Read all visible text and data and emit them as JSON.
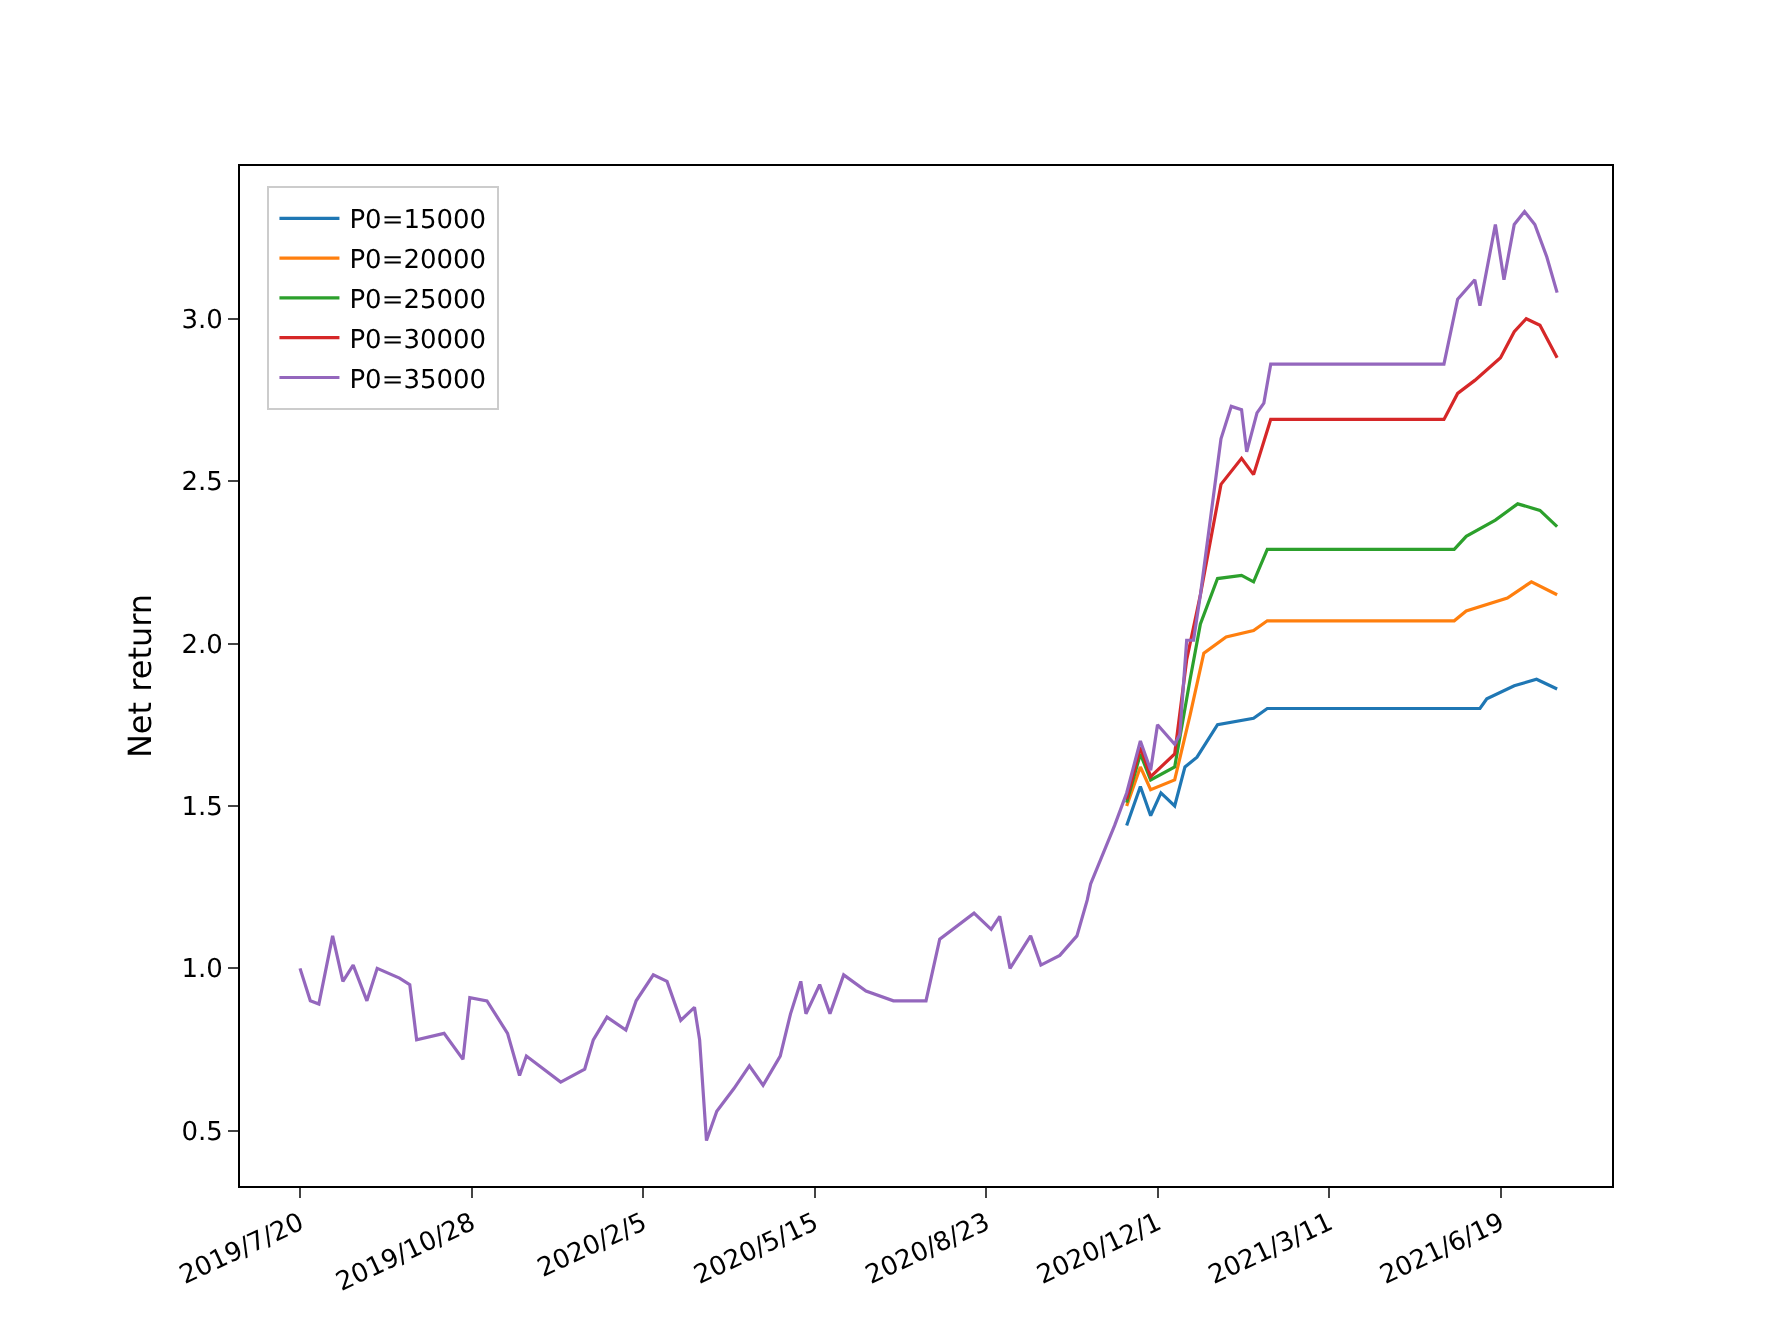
{
  "chart_data": {
    "type": "line",
    "ylabel": "Net return",
    "legend": "top left",
    "grid": false,
    "line_style": "solid",
    "marker": "none",
    "xlim": [
      "2019-06-15",
      "2021-08-23"
    ],
    "xticks": [
      {
        "value": "2019-07-20",
        "label": "2019/7/20"
      },
      {
        "value": "2019-10-28",
        "label": "2019/10/28"
      },
      {
        "value": "2020-02-05",
        "label": "2020/2/5"
      },
      {
        "value": "2020-05-15",
        "label": "2020/5/15"
      },
      {
        "value": "2020-08-23",
        "label": "2020/8/23"
      },
      {
        "value": "2020-12-01",
        "label": "2020/12/1"
      },
      {
        "value": "2021-03-11",
        "label": "2021/3/11"
      },
      {
        "value": "2021-06-19",
        "label": "2021/6/19"
      }
    ],
    "ylim": [
      0.33,
      3.47
    ],
    "yticks": [
      0.5,
      {
        "value": 1,
        "label": "1.0"
      },
      1.5,
      {
        "value": 2,
        "label": "2.0"
      },
      2.5,
      {
        "value": 3,
        "label": "3.0"
      }
    ],
    "series": [
      {
        "name": "P0=15000",
        "color": "#1f77b4",
        "x": [
          "2020-11-13",
          "2020-11-21",
          "2020-11-27",
          "2020-12-03",
          "2020-12-11",
          "2020-12-17",
          "2020-12-24",
          "2021-01-05",
          "2021-01-26",
          "2021-02-03",
          "2021-06-07",
          "2021-06-11",
          "2021-06-27",
          "2021-07-10",
          "2021-07-22"
        ],
        "values": [
          1.44,
          1.56,
          1.47,
          1.54,
          1.5,
          1.62,
          1.65,
          1.75,
          1.77,
          1.8,
          1.8,
          1.83,
          1.87,
          1.89,
          1.86
        ]
      },
      {
        "name": "P0=20000",
        "color": "#ff7f0e",
        "x": [
          "2020-11-13",
          "2020-11-21",
          "2020-11-27",
          "2020-12-11",
          "2020-12-20",
          "2020-12-28",
          "2021-01-10",
          "2021-01-26",
          "2021-02-03",
          "2021-05-23",
          "2021-05-30",
          "2021-06-23",
          "2021-07-07",
          "2021-07-22"
        ],
        "values": [
          1.5,
          1.62,
          1.55,
          1.58,
          1.78,
          1.97,
          2.02,
          2.04,
          2.07,
          2.07,
          2.1,
          2.14,
          2.19,
          2.15
        ]
      },
      {
        "name": "P0=25000",
        "color": "#2ca02c",
        "x": [
          "2020-11-13",
          "2020-11-21",
          "2020-11-27",
          "2020-12-11",
          "2020-12-20",
          "2020-12-26",
          "2021-01-05",
          "2021-01-19",
          "2021-01-26",
          "2021-02-03",
          "2021-05-23",
          "2021-05-30",
          "2021-06-16",
          "2021-06-29",
          "2021-07-12",
          "2021-07-22"
        ],
        "values": [
          1.51,
          1.66,
          1.58,
          1.62,
          1.89,
          2.06,
          2.2,
          2.21,
          2.19,
          2.29,
          2.29,
          2.33,
          2.38,
          2.43,
          2.41,
          2.36
        ]
      },
      {
        "name": "P0=30000",
        "color": "#d62728",
        "x": [
          "2020-11-13",
          "2020-11-21",
          "2020-11-27",
          "2020-12-11",
          "2020-12-18",
          "2020-12-26",
          "2021-01-07",
          "2021-01-19",
          "2021-01-26",
          "2021-02-05",
          "2021-05-17",
          "2021-05-25",
          "2021-06-04",
          "2021-06-19",
          "2021-06-27",
          "2021-07-04",
          "2021-07-12",
          "2021-07-22"
        ],
        "values": [
          1.52,
          1.68,
          1.59,
          1.66,
          1.95,
          2.15,
          2.49,
          2.57,
          2.52,
          2.69,
          2.69,
          2.77,
          2.81,
          2.88,
          2.96,
          3.0,
          2.98,
          2.88
        ]
      },
      {
        "name": "P0=35000",
        "color": "#9467bd",
        "x": [
          "2019-07-20",
          "2019-07-26",
          "2019-07-31",
          "2019-08-08",
          "2019-08-14",
          "2019-08-20",
          "2019-08-28",
          "2019-09-03",
          "2019-09-16",
          "2019-09-22",
          "2019-09-26",
          "2019-10-12",
          "2019-10-23",
          "2019-10-27",
          "2019-11-06",
          "2019-11-18",
          "2019-11-25",
          "2019-11-29",
          "2019-12-19",
          "2020-01-02",
          "2020-01-07",
          "2020-01-15",
          "2020-01-26",
          "2020-02-01",
          "2020-02-11",
          "2020-02-19",
          "2020-02-27",
          "2020-03-06",
          "2020-03-09",
          "2020-03-13",
          "2020-03-19",
          "2020-03-29",
          "2020-04-07",
          "2020-04-15",
          "2020-04-25",
          "2020-05-01",
          "2020-05-07",
          "2020-05-10",
          "2020-05-18",
          "2020-05-24",
          "2020-06-01",
          "2020-06-14",
          "2020-06-30",
          "2020-07-19",
          "2020-07-27",
          "2020-08-16",
          "2020-08-26",
          "2020-08-31",
          "2020-09-06",
          "2020-09-18",
          "2020-09-24",
          "2020-10-05",
          "2020-10-15",
          "2020-10-21",
          "2020-10-23",
          "2020-11-06",
          "2020-11-13",
          "2020-11-21",
          "2020-11-27",
          "2020-12-01",
          "2020-12-11",
          "2020-12-14",
          "2020-12-18",
          "2020-12-22",
          "2020-12-26",
          "2021-01-07",
          "2021-01-13",
          "2021-01-19",
          "2021-01-22",
          "2021-01-28",
          "2021-02-01",
          "2021-02-05",
          "2021-05-17",
          "2021-05-25",
          "2021-06-04",
          "2021-06-07",
          "2021-06-16",
          "2021-06-21",
          "2021-06-27",
          "2021-07-03",
          "2021-07-09",
          "2021-07-16",
          "2021-07-22"
        ],
        "values": [
          1.0,
          0.9,
          0.89,
          1.1,
          0.96,
          1.01,
          0.9,
          1.0,
          0.97,
          0.95,
          0.78,
          0.8,
          0.72,
          0.91,
          0.9,
          0.8,
          0.67,
          0.73,
          0.65,
          0.69,
          0.78,
          0.85,
          0.81,
          0.9,
          0.98,
          0.96,
          0.84,
          0.88,
          0.78,
          0.47,
          0.56,
          0.63,
          0.7,
          0.64,
          0.73,
          0.86,
          0.96,
          0.86,
          0.95,
          0.86,
          0.98,
          0.93,
          0.9,
          0.9,
          1.09,
          1.17,
          1.12,
          1.16,
          1.0,
          1.1,
          1.01,
          1.04,
          1.1,
          1.21,
          1.26,
          1.44,
          1.54,
          1.7,
          1.61,
          1.75,
          1.69,
          1.72,
          2.01,
          2.01,
          2.15,
          2.63,
          2.73,
          2.72,
          2.59,
          2.71,
          2.74,
          2.86,
          2.86,
          3.06,
          3.12,
          3.04,
          3.29,
          3.12,
          3.29,
          3.33,
          3.29,
          3.19,
          3.08
        ]
      }
    ]
  }
}
